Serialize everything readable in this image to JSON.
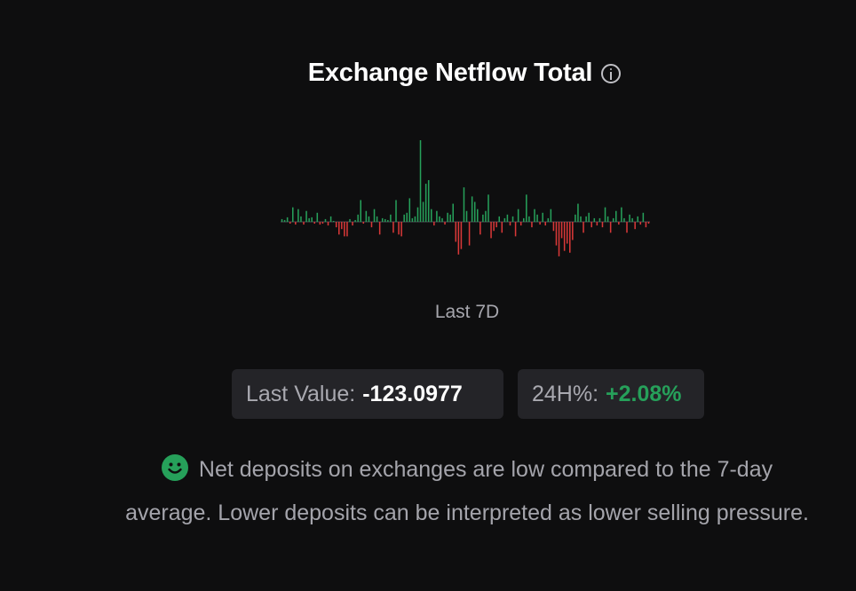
{
  "widget": {
    "title": "Exchange Netflow Total",
    "period_label": "Last 7D",
    "last_value": {
      "label": "Last Value:",
      "value": "-123.0977"
    },
    "change_24h": {
      "label": "24H%:",
      "value": "+2.08%"
    },
    "message": "Net deposits on exchanges are low compared to the 7-day average. Lower deposits can be interpreted as lower selling pressure.",
    "sentiment_icon": "smiley-icon",
    "info_icon": "info-icon"
  },
  "colors": {
    "positive": "#26a05a",
    "negative": "#d93838",
    "background": "#0e0e0f",
    "chip": "#242428"
  },
  "chart_data": {
    "type": "bar",
    "title": "",
    "xlabel": "",
    "ylabel": "",
    "values": [
      3,
      2,
      5,
      -2,
      16,
      -3,
      14,
      6,
      -3,
      12,
      4,
      5,
      -2,
      10,
      -3,
      -2,
      3,
      -4,
      6,
      1,
      -6,
      -14,
      -8,
      -16,
      -16,
      3,
      -4,
      2,
      8,
      24,
      -2,
      12,
      6,
      -6,
      14,
      6,
      -14,
      4,
      3,
      2,
      8,
      -12,
      24,
      -14,
      -16,
      8,
      10,
      26,
      4,
      6,
      16,
      90,
      22,
      42,
      46,
      14,
      -4,
      12,
      6,
      4,
      -3,
      10,
      8,
      20,
      -22,
      -36,
      -30,
      38,
      12,
      -26,
      28,
      22,
      14,
      -14,
      8,
      12,
      30,
      -18,
      -10,
      -6,
      6,
      -12,
      4,
      8,
      -4,
      6,
      -16,
      14,
      -4,
      4,
      30,
      6,
      -6,
      14,
      8,
      -3,
      10,
      -4,
      4,
      14,
      -10,
      -26,
      -38,
      -18,
      -32,
      -24,
      -34,
      -20,
      8,
      20,
      6,
      -12,
      6,
      10,
      -6,
      4,
      -4,
      4,
      -6,
      16,
      6,
      -12,
      4,
      12,
      -3,
      16,
      4,
      -12,
      8,
      4,
      -8,
      6,
      -3,
      10,
      -6,
      -2
    ]
  }
}
